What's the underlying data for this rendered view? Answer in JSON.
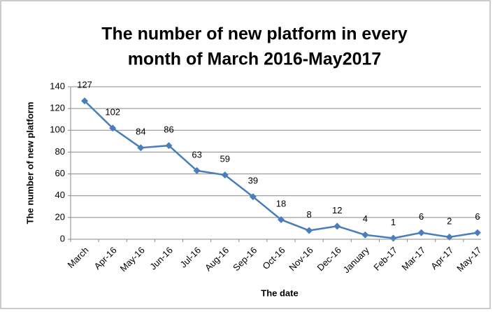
{
  "chart_data": {
    "type": "line",
    "title": [
      "The number of new platform in every",
      "month of March 2016-May2017"
    ],
    "x_label": "The date",
    "y_label": "The number of new platform",
    "categories": [
      "March",
      "Apr-16",
      "May-16",
      "Jun-16",
      "Jul-16",
      "Aug-16",
      "Sep-16",
      "Oct-16",
      "Nov-16",
      "Dec-16",
      "January",
      "Feb-17",
      "Mar-17",
      "Apr-17",
      "May-17"
    ],
    "values": [
      127,
      102,
      84,
      86,
      63,
      59,
      39,
      18,
      8,
      12,
      4,
      1,
      6,
      2,
      6
    ],
    "color": "#4a7ebb",
    "ylim": [
      0,
      140
    ],
    "yticks": [
      0,
      20,
      40,
      60,
      80,
      100,
      120,
      140
    ],
    "grid": true
  }
}
